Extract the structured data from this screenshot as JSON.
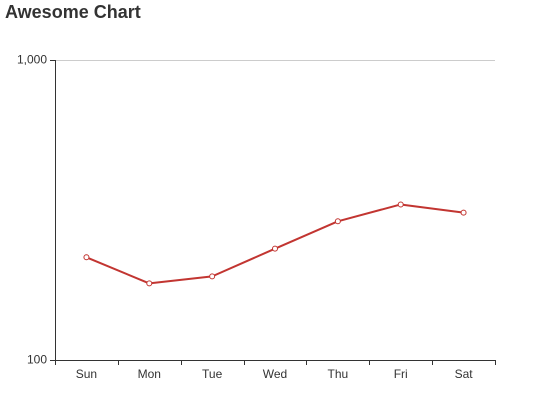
{
  "chart_data": {
    "type": "line",
    "title": "Awesome Chart",
    "categories": [
      "Sun",
      "Mon",
      "Tue",
      "Wed",
      "Thu",
      "Fri",
      "Sat"
    ],
    "series": [
      {
        "values": [
          220,
          180,
          190,
          235,
          290,
          330,
          310
        ],
        "color": "#c23531"
      }
    ],
    "y_scale": "log",
    "ylim": [
      100,
      1000
    ],
    "y_ticks": [
      {
        "value": 100,
        "label": "100"
      },
      {
        "value": 1000,
        "label": "1,000"
      }
    ],
    "grid": "horizontal line at the top tick only",
    "legend": "none"
  }
}
